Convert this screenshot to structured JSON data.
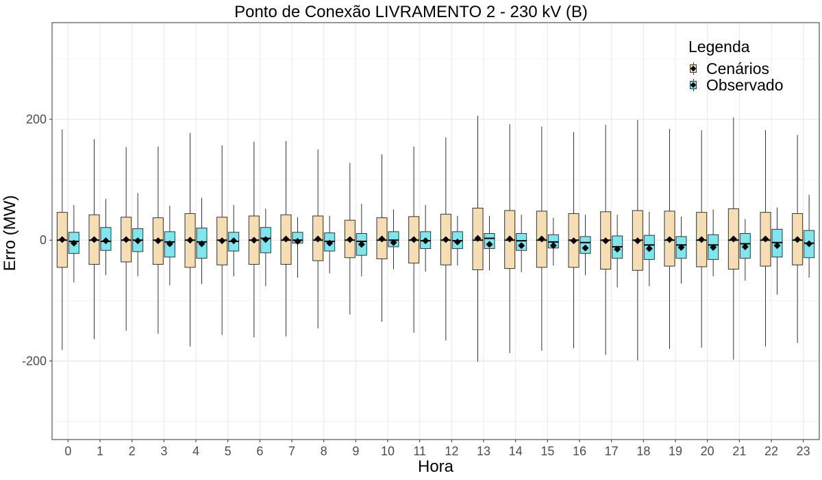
{
  "chart_data": {
    "type": "boxplot",
    "title": "Ponto de Conexão LIVRAMENTO 2 - 230 kV (B)",
    "xlabel": "Hora",
    "ylabel": "Erro (MW)",
    "ylim": [
      -330,
      360
    ],
    "yticks": [
      -200,
      0,
      200
    ],
    "grid": true,
    "legend": {
      "title": "Legenda",
      "position": "top-right"
    },
    "categories": [
      "0",
      "1",
      "2",
      "3",
      "4",
      "5",
      "6",
      "7",
      "8",
      "9",
      "10",
      "11",
      "12",
      "13",
      "14",
      "15",
      "16",
      "17",
      "18",
      "19",
      "20",
      "21",
      "22",
      "23"
    ],
    "series": [
      {
        "name": "Cenários",
        "color": "#F5DEB3",
        "min": [
          -182,
          -164,
          -150,
          -155,
          -176,
          -157,
          -161,
          -159,
          -146,
          -123,
          -135,
          -153,
          -166,
          -201,
          -187,
          -183,
          -179,
          -190,
          -199,
          -180,
          -178,
          -198,
          -176,
          -170
        ],
        "q1": [
          -45,
          -40,
          -36,
          -40,
          -45,
          -41,
          -40,
          -40,
          -34,
          -29,
          -31,
          -38,
          -41,
          -49,
          -47,
          -45,
          -45,
          -48,
          -50,
          -43,
          -44,
          -48,
          -43,
          -41
        ],
        "median": [
          0,
          0,
          0,
          0,
          0,
          0,
          0,
          0,
          0,
          0,
          0,
          0,
          0,
          0,
          0,
          0,
          0,
          0,
          0,
          0,
          0,
          0,
          0,
          0
        ],
        "q3": [
          46,
          42,
          38,
          37,
          44,
          38,
          40,
          42,
          40,
          33,
          37,
          39,
          43,
          53,
          49,
          48,
          44,
          47,
          49,
          48,
          46,
          52,
          46,
          44
        ],
        "max": [
          183,
          167,
          154,
          155,
          177,
          157,
          163,
          164,
          150,
          128,
          142,
          155,
          170,
          206,
          192,
          188,
          179,
          191,
          199,
          184,
          182,
          203,
          182,
          174
        ],
        "mean": [
          1,
          1,
          1,
          -1,
          0,
          -1,
          0,
          2,
          2,
          1,
          2,
          1,
          1,
          3,
          2,
          2,
          -1,
          -1,
          -1,
          1,
          1,
          2,
          2,
          1
        ]
      },
      {
        "name": "Observado",
        "color": "#7FE6EE",
        "min": [
          -70,
          -58,
          -60,
          -75,
          -73,
          -60,
          -76,
          -62,
          -55,
          -60,
          -48,
          -52,
          -42,
          -50,
          -53,
          -42,
          -58,
          -78,
          -76,
          -72,
          -60,
          -67,
          -90,
          -62
        ],
        "q1": [
          -22,
          -17,
          -19,
          -28,
          -30,
          -18,
          -21,
          -5,
          -18,
          -25,
          -11,
          -14,
          -14,
          -14,
          -17,
          -13,
          -22,
          -30,
          -32,
          -30,
          -32,
          -30,
          -28,
          -29
        ],
        "median": [
          -2,
          -2,
          0,
          -3,
          -3,
          -2,
          3,
          0,
          -2,
          -2,
          0,
          -1,
          -1,
          3,
          -1,
          -3,
          -4,
          -11,
          -8,
          -8,
          -8,
          -6,
          -4,
          -5
        ],
        "q3": [
          13,
          21,
          19,
          14,
          20,
          13,
          21,
          13,
          12,
          11,
          14,
          14,
          14,
          11,
          11,
          9,
          6,
          7,
          8,
          6,
          9,
          11,
          18,
          16
        ],
        "max": [
          58,
          68,
          78,
          57,
          70,
          58,
          52,
          38,
          40,
          60,
          51,
          58,
          40,
          40,
          42,
          37,
          42,
          42,
          47,
          39,
          51,
          35,
          54,
          75
        ],
        "mean": [
          -5,
          -1,
          -1,
          -6,
          -6,
          -1,
          1,
          -2,
          -5,
          -7,
          -4,
          -1,
          -3,
          -7,
          -9,
          -9,
          -13,
          -15,
          -14,
          -12,
          -12,
          -11,
          -9,
          -6
        ]
      }
    ]
  }
}
